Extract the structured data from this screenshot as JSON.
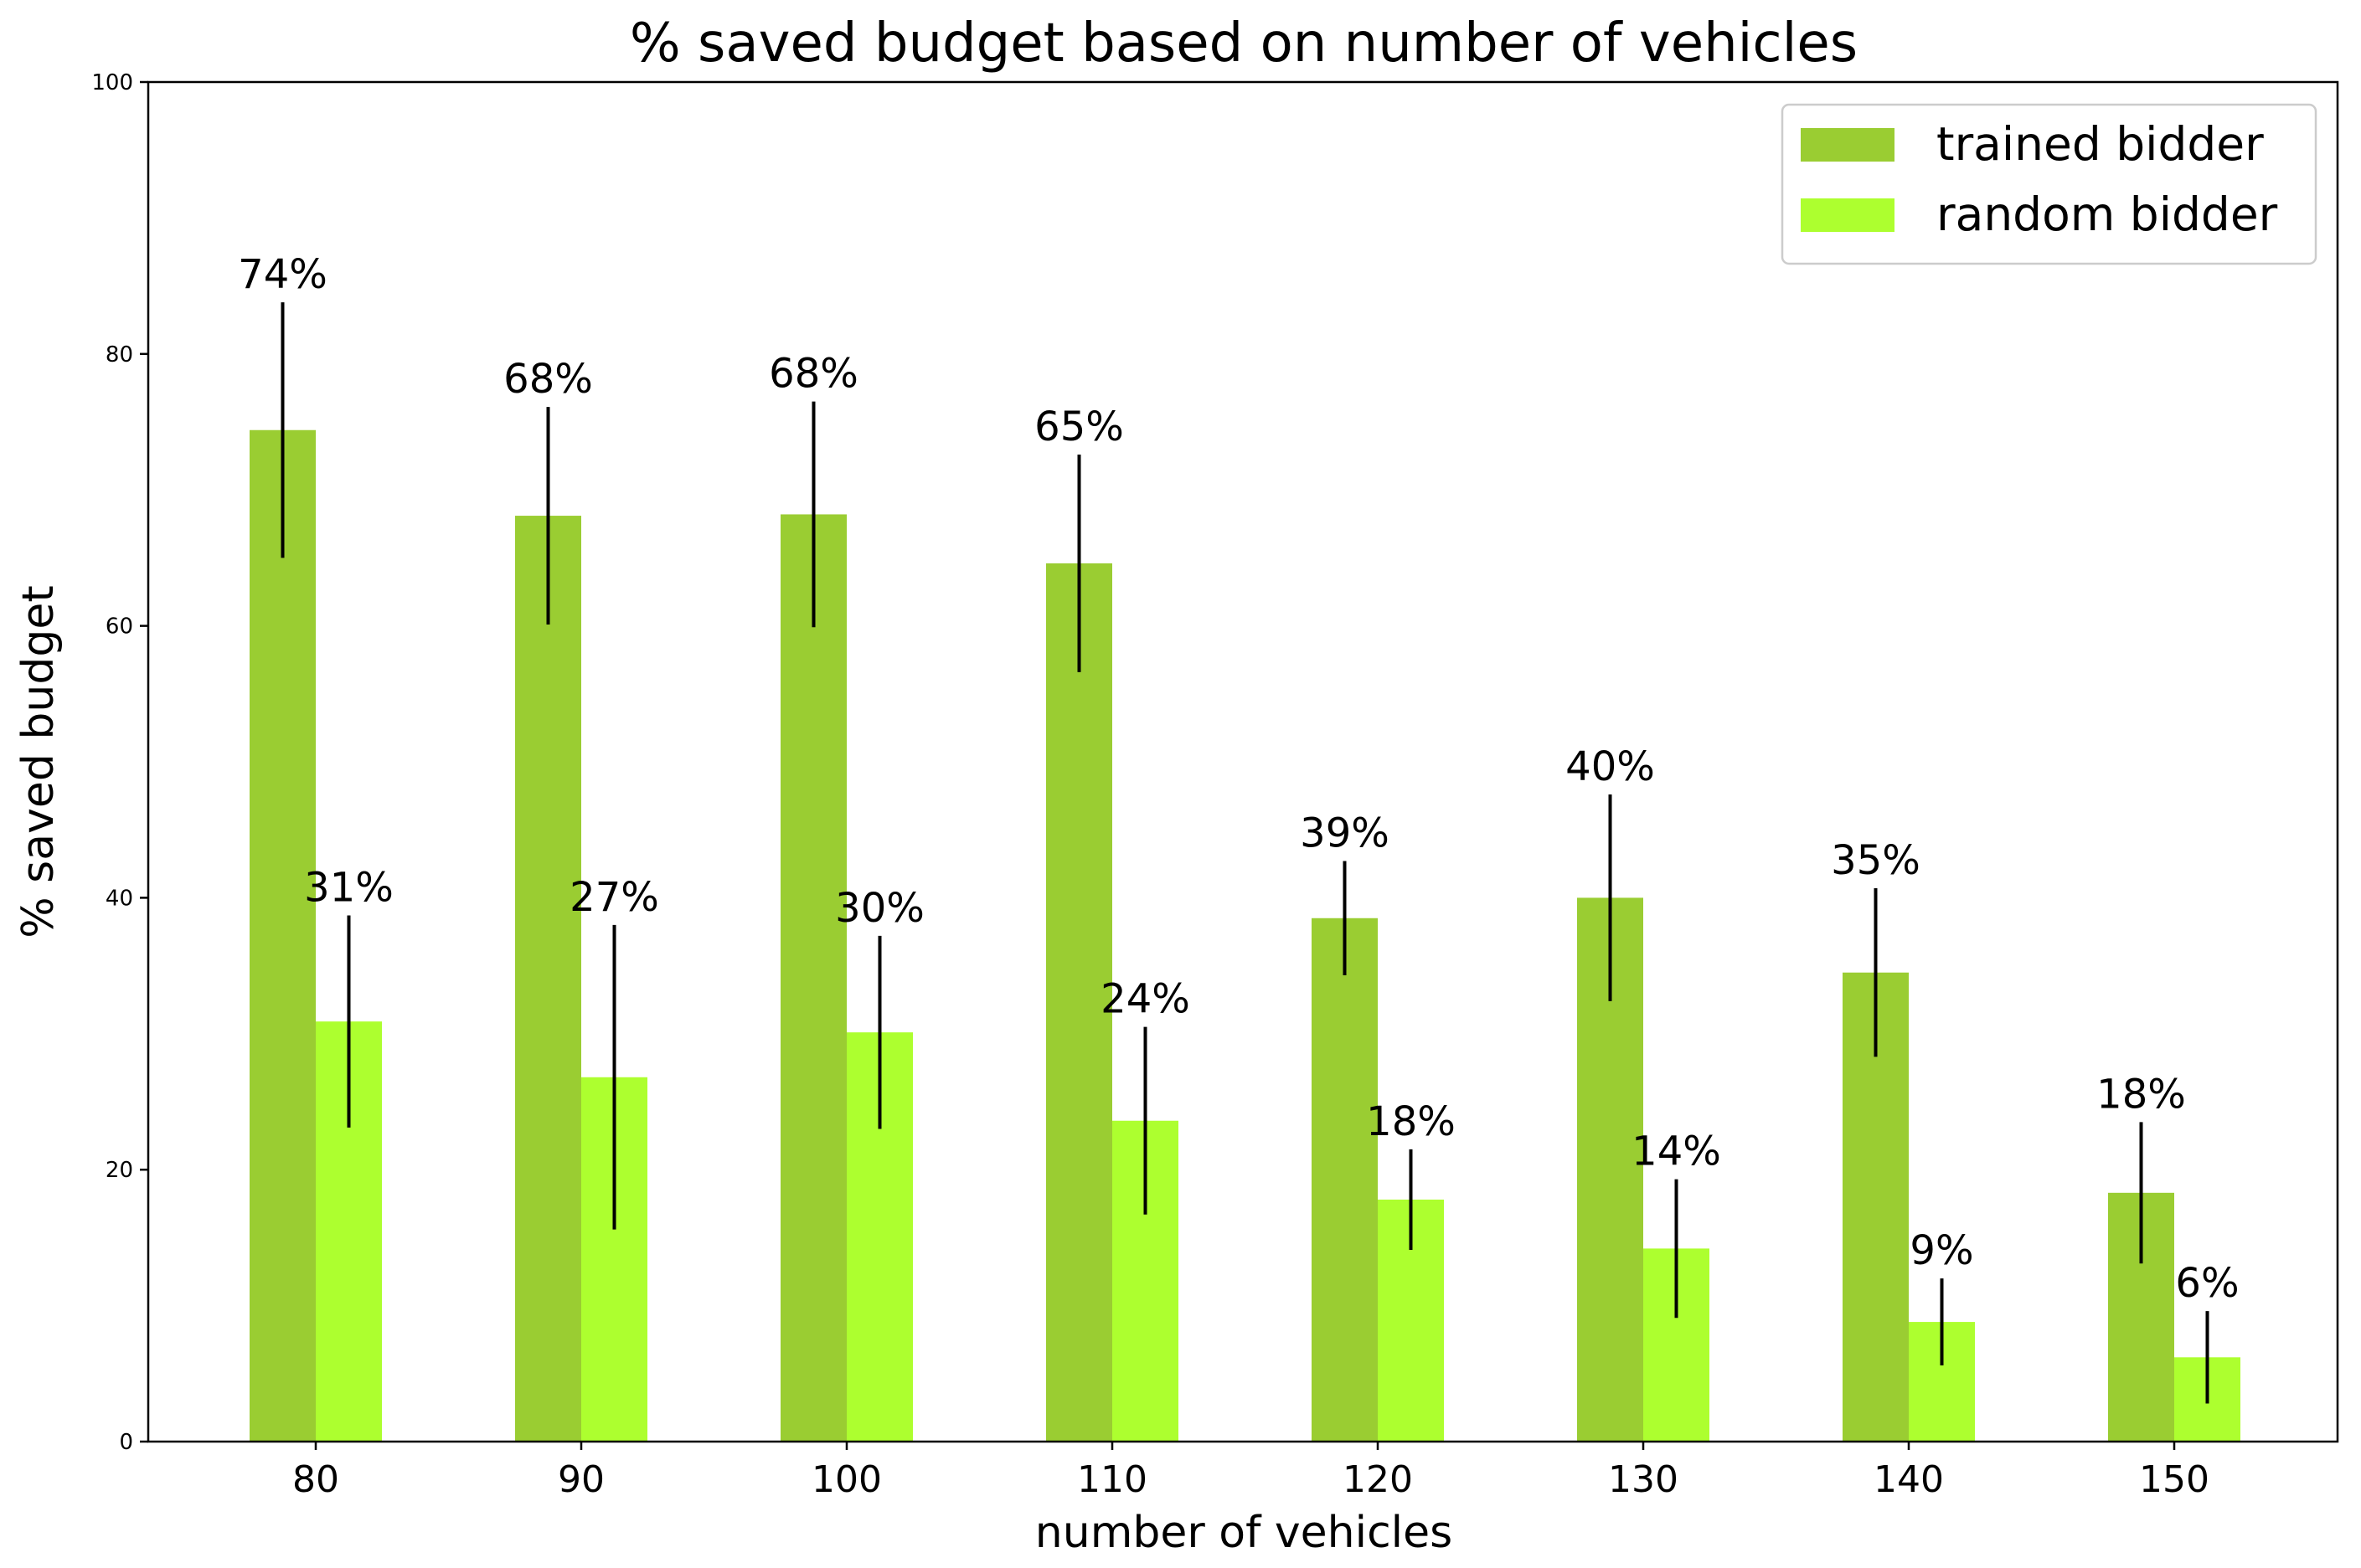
{
  "chart_data": {
    "type": "bar",
    "title": "% saved budget based on number of vehicles",
    "xlabel": "number of vehicles",
    "ylabel": "% saved budget",
    "ylim": [
      0,
      100
    ],
    "yticks": [
      "0",
      "20",
      "40",
      "60",
      "80",
      "100"
    ],
    "categories": [
      "80",
      "90",
      "100",
      "110",
      "120",
      "130",
      "140",
      "150"
    ],
    "grid": false,
    "legend_position": "top-right",
    "series": [
      {
        "name": "trained bidder",
        "color": "#9ACD32",
        "values": [
          74.4,
          68.1,
          68.2,
          64.6,
          38.5,
          40.0,
          34.5,
          18.3
        ],
        "errors": [
          9.4,
          8.0,
          8.3,
          8.0,
          4.2,
          7.6,
          6.2,
          5.2
        ],
        "labels": [
          "74%",
          "68%",
          "68%",
          "65%",
          "39%",
          "40%",
          "35%",
          "18%"
        ]
      },
      {
        "name": "random bidder",
        "color": "#ADFF2F",
        "values": [
          30.9,
          26.8,
          30.1,
          23.6,
          17.8,
          14.2,
          8.8,
          6.2
        ],
        "errors": [
          7.8,
          11.2,
          7.1,
          6.9,
          3.7,
          5.1,
          3.2,
          3.4
        ],
        "labels": [
          "31%",
          "27%",
          "30%",
          "24%",
          "18%",
          "14%",
          "9%",
          "6%"
        ]
      }
    ]
  }
}
